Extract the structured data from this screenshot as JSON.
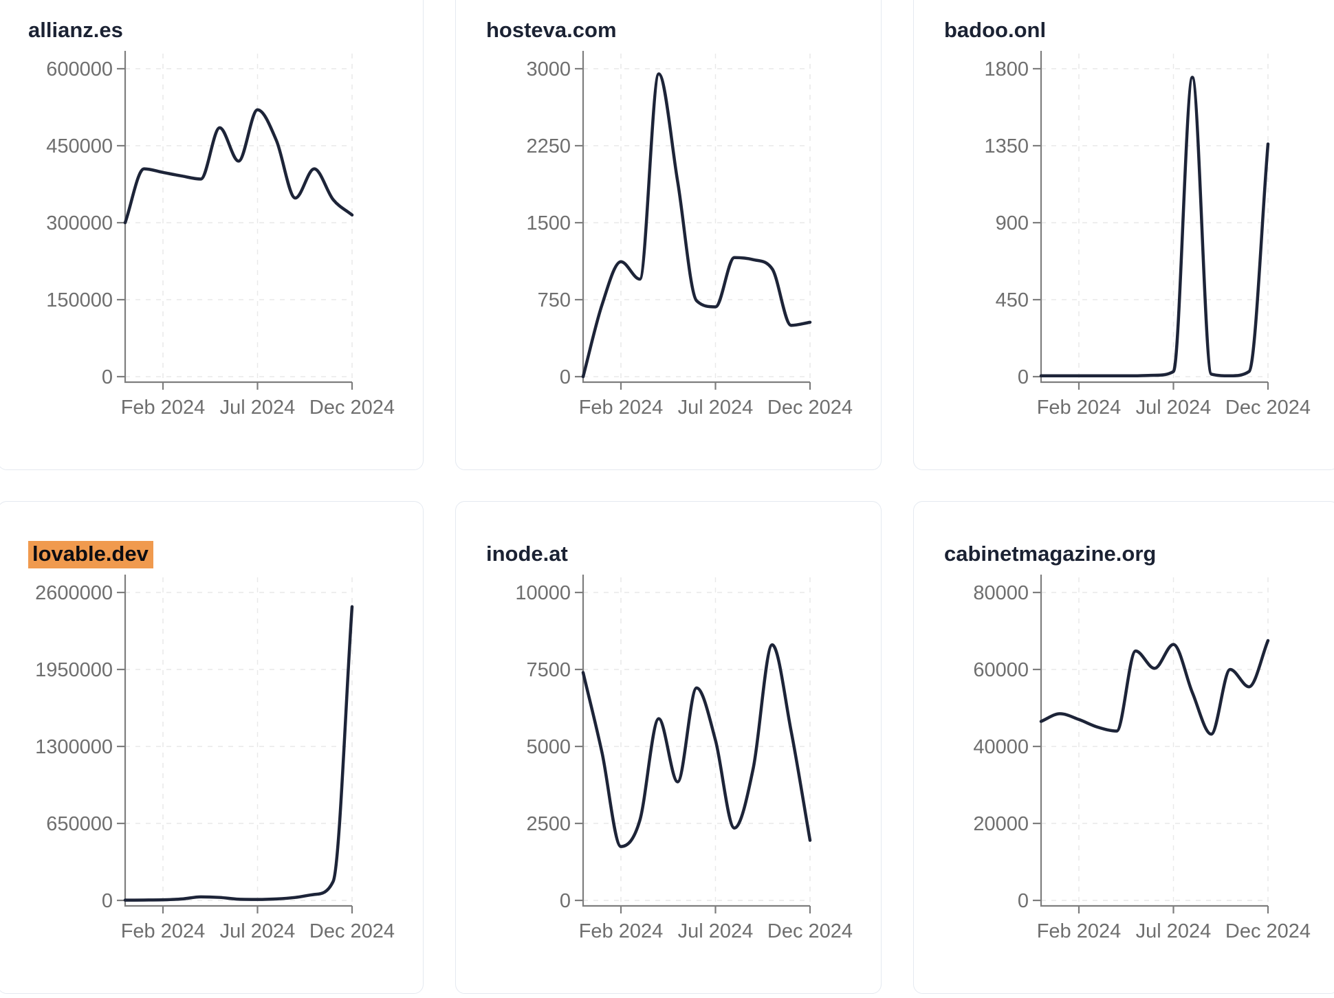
{
  "page": {
    "background_color": "#ffffff",
    "description_colors": {
      "card_border": "#e4e9f0",
      "card_background": "#ffffff",
      "title_color": "#1b2233",
      "highlight_background": "#f09a4e",
      "highlight_text_color": "#0d0d12",
      "line_color": "#1d2438",
      "axis_color": "#7d7d7d",
      "grid_color": "#e9e9e9",
      "tick_label_color": "#6e6e6e"
    }
  },
  "chart_data": {
    "type": "line",
    "x": [
      "Dec 2023",
      "Jan 2024",
      "Feb 2024",
      "Mar 2024",
      "Apr 2024",
      "May 2024",
      "Jun 2024",
      "Jul 2024",
      "Aug 2024",
      "Sep 2024",
      "Oct 2024",
      "Nov 2024",
      "Dec 2024"
    ],
    "xtick_labels": [
      "Feb 2024",
      "Jul 2024",
      "Dec 2024"
    ],
    "xtick_month_indices": [
      2,
      7,
      12
    ],
    "grid": "dashed",
    "legend": "none",
    "series": [
      {
        "name": "allianz.es",
        "highlighted": false,
        "ylim": [
          0,
          600000
        ],
        "yticks": [
          0,
          150000,
          300000,
          450000,
          600000
        ],
        "values": [
          300000,
          405000,
          398000,
          391000,
          385000,
          485000,
          420000,
          520000,
          460000,
          348000,
          405000,
          345000,
          315000
        ]
      },
      {
        "name": "hosteva.com",
        "highlighted": false,
        "ylim": [
          0,
          3000
        ],
        "yticks": [
          0,
          750,
          1500,
          2250,
          3000
        ],
        "values": [
          0,
          700,
          1120,
          950,
          2950,
          1900,
          740,
          680,
          1160,
          1140,
          1050,
          500,
          530
        ]
      },
      {
        "name": "badoo.onl",
        "highlighted": false,
        "ylim": [
          0,
          1800
        ],
        "yticks": [
          0,
          450,
          900,
          1350,
          1800
        ],
        "values": [
          5,
          5,
          5,
          5,
          5,
          5,
          8,
          30,
          1750,
          15,
          5,
          30,
          1360
        ]
      },
      {
        "name": "lovable.dev",
        "highlighted": true,
        "ylim": [
          0,
          2600000
        ],
        "yticks": [
          0,
          650000,
          1300000,
          1950000,
          2600000
        ],
        "values": [
          2000,
          3000,
          5000,
          12000,
          30000,
          25000,
          10000,
          8000,
          12000,
          25000,
          50000,
          160000,
          2480000
        ]
      },
      {
        "name": "inode.at",
        "highlighted": false,
        "ylim": [
          0,
          10000
        ],
        "yticks": [
          0,
          2500,
          5000,
          7500,
          10000
        ],
        "values": [
          7400,
          4800,
          1750,
          2600,
          5900,
          3850,
          6900,
          5200,
          2350,
          4300,
          8300,
          5500,
          1950
        ]
      },
      {
        "name": "cabinetmagazine.org",
        "highlighted": false,
        "ylim": [
          0,
          80000
        ],
        "yticks": [
          0,
          20000,
          40000,
          60000,
          80000
        ],
        "values": [
          46500,
          48500,
          47000,
          45000,
          44000,
          64800,
          60300,
          66500,
          54000,
          43200,
          60000,
          55500,
          67500
        ]
      }
    ]
  }
}
